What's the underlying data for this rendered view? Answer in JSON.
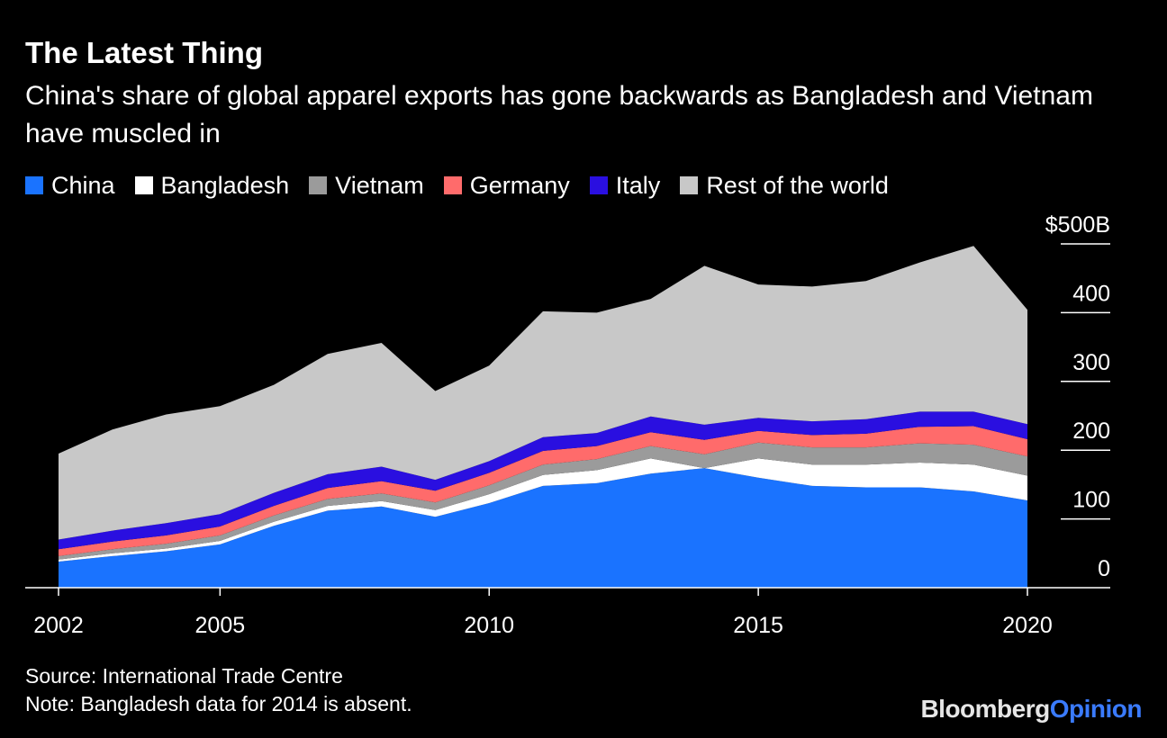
{
  "header": {
    "title": "The Latest Thing",
    "subtitle": "China's share of global apparel exports has gone backwards as Bangladesh and Vietnam have muscled in"
  },
  "footer": {
    "source": "Source: International Trade Centre",
    "note": "Note: Bangladesh data for 2014 is absent."
  },
  "brand": {
    "part1": "Bloomberg",
    "part2": "Opinion"
  },
  "chart_data": {
    "type": "area",
    "stacked": true,
    "title": "The Latest Thing",
    "xlabel": "",
    "ylabel": "",
    "x": [
      2002,
      2003,
      2004,
      2005,
      2006,
      2007,
      2008,
      2009,
      2010,
      2011,
      2012,
      2013,
      2014,
      2015,
      2016,
      2017,
      2018,
      2019,
      2020
    ],
    "xticks": [
      2002,
      2005,
      2010,
      2015,
      2020
    ],
    "xtick_labels": [
      "2002",
      "2005",
      "2010",
      "2015",
      "2020"
    ],
    "yticks": [
      0,
      100,
      200,
      300,
      400,
      500
    ],
    "ytick_labels": [
      "0",
      "100",
      "200",
      "300",
      "400",
      "$500B"
    ],
    "ylim": [
      0,
      500
    ],
    "legend_position": "top-left",
    "series": [
      {
        "name": "China",
        "color": "#1a73ff",
        "values": [
          38,
          46,
          53,
          63,
          90,
          112,
          118,
          103,
          123,
          148,
          152,
          166,
          174,
          160,
          148,
          146,
          146,
          140,
          127
        ]
      },
      {
        "name": "Bangladesh",
        "color": "#ffffff",
        "values": [
          3,
          4,
          4,
          5,
          6,
          7,
          8,
          10,
          13,
          16,
          19,
          22,
          0,
          28,
          31,
          33,
          36,
          39,
          36
        ]
      },
      {
        "name": "Vietnam",
        "color": "#9b9b9b",
        "values": [
          5,
          6,
          7,
          8,
          9,
          10,
          11,
          11,
          13,
          15,
          16,
          18,
          20,
          23,
          25,
          25,
          28,
          29,
          28
        ]
      },
      {
        "name": "Germany",
        "color": "#ff6b6b",
        "values": [
          10,
          11,
          12,
          13,
          14,
          16,
          18,
          17,
          18,
          20,
          19,
          20,
          21,
          17,
          18,
          20,
          24,
          27,
          25
        ]
      },
      {
        "name": "Italy",
        "color": "#2a0fe0",
        "values": [
          14,
          16,
          18,
          18,
          19,
          20,
          21,
          16,
          17,
          20,
          19,
          23,
          22,
          19,
          20,
          21,
          22,
          21,
          22
        ]
      },
      {
        "name": "Rest of the world",
        "color": "#c8c8c8",
        "values": [
          125,
          147,
          158,
          157,
          157,
          175,
          180,
          129,
          139,
          183,
          175,
          171,
          231,
          194,
          196,
          201,
          217,
          241,
          166
        ]
      }
    ]
  }
}
